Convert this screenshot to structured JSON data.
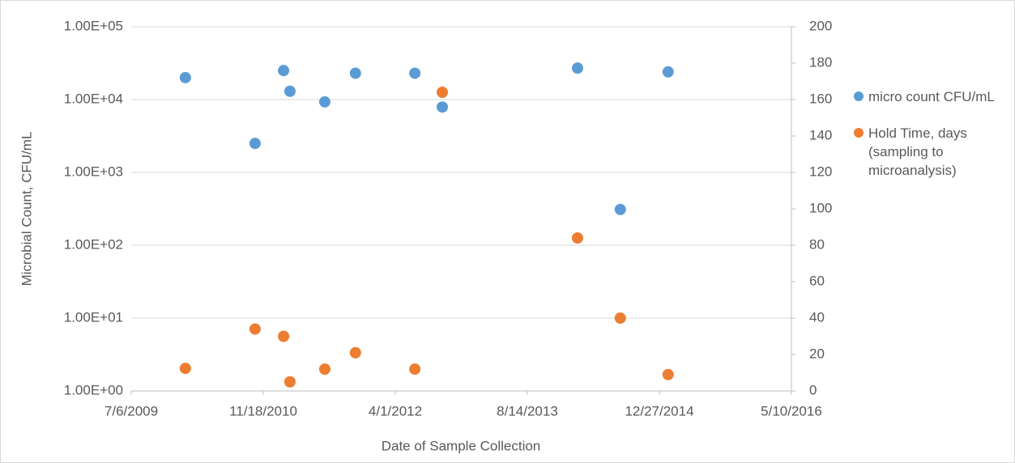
{
  "chart_data": {
    "type": "scatter",
    "y_label": "Microbial Count, CFU/mL",
    "x_label": "Date of Sample Collection",
    "xlim": [
      "7/6/2009",
      "5/10/2016"
    ],
    "xticks": [
      "7/6/2009",
      "11/18/2010",
      "4/1/2012",
      "8/14/2013",
      "12/27/2014",
      "5/10/2016"
    ],
    "ylim": [
      1,
      100000
    ],
    "ylog": true,
    "yticks": [
      {
        "value": 1,
        "label": "1.00E+00"
      },
      {
        "value": 10,
        "label": "1.00E+01"
      },
      {
        "value": 100,
        "label": "1.00E+02"
      },
      {
        "value": 1000,
        "label": "1.00E+03"
      },
      {
        "value": 10000,
        "label": "1.00E+04"
      },
      {
        "value": 100000,
        "label": "1.00E+05"
      }
    ],
    "y2lim": [
      0,
      200
    ],
    "y2ticks": [
      0,
      20,
      40,
      60,
      80,
      100,
      120,
      140,
      160,
      180,
      200
    ],
    "grid": true,
    "legend": "right",
    "series": [
      {
        "name": "micro count CFU/mL",
        "color": "#5b9bd5",
        "x": [
          "1/27/2010",
          "10/18/2010",
          "2/3/2011",
          "2/27/2011",
          "7/9/2011",
          "11/2/2011",
          "6/14/2012",
          "9/26/2012",
          "2/20/2014",
          "8/1/2014",
          "1/29/2015"
        ],
        "values": [
          20000,
          2500,
          25000,
          13000,
          9300,
          23000,
          23000,
          7900,
          27000,
          310,
          24000
        ]
      },
      {
        "name": "Hold Time, days (sampling to microanalysis)",
        "color": "#ed7d31",
        "axis": "y2",
        "x": [
          "1/27/2010",
          "10/18/2010",
          "2/3/2011",
          "2/27/2011",
          "7/9/2011",
          "11/2/2011",
          "6/14/2012",
          "9/26/2012",
          "2/20/2014",
          "8/1/2014",
          "1/29/2015"
        ],
        "values": [
          12.4,
          34,
          30,
          5,
          12,
          21,
          12,
          164,
          84,
          40,
          9
        ]
      }
    ]
  }
}
